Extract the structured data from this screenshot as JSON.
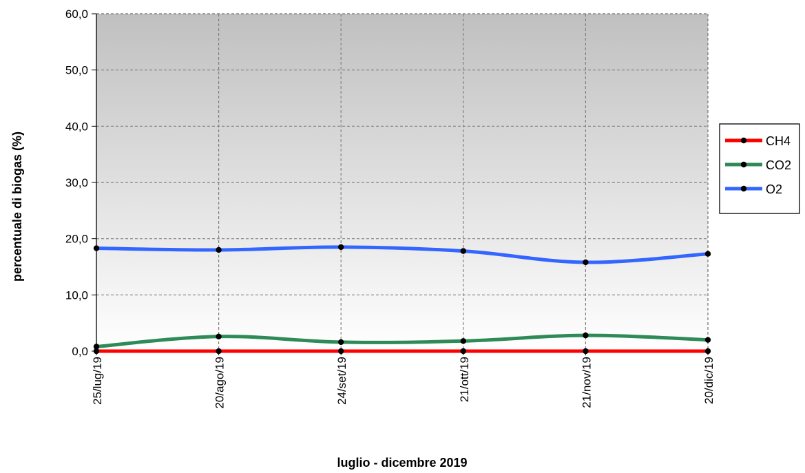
{
  "chart_data": {
    "type": "line",
    "title": "",
    "xlabel": "luglio - dicembre 2019",
    "ylabel": "percentuale di biogas (%)",
    "ylim": [
      0,
      60
    ],
    "yticks": [
      "0,0",
      "10,0",
      "20,0",
      "30,0",
      "40,0",
      "50,0",
      "60,0"
    ],
    "categories": [
      "25/lug/19",
      "20/ago/19",
      "24/set/19",
      "21/ott/19",
      "21/nov/19",
      "20/dic/19"
    ],
    "grid": true,
    "legend_position": "right",
    "series": [
      {
        "name": "CH4",
        "color": "#ff0000",
        "values": [
          0.0,
          0.0,
          0.0,
          0.0,
          0.0,
          0.0
        ]
      },
      {
        "name": "CO2",
        "color": "#2e8b57",
        "values": [
          0.8,
          2.6,
          1.6,
          1.8,
          2.8,
          2.0
        ]
      },
      {
        "name": "O2",
        "color": "#3366ff",
        "values": [
          18.3,
          18.0,
          18.5,
          17.8,
          15.8,
          17.3
        ]
      }
    ]
  }
}
